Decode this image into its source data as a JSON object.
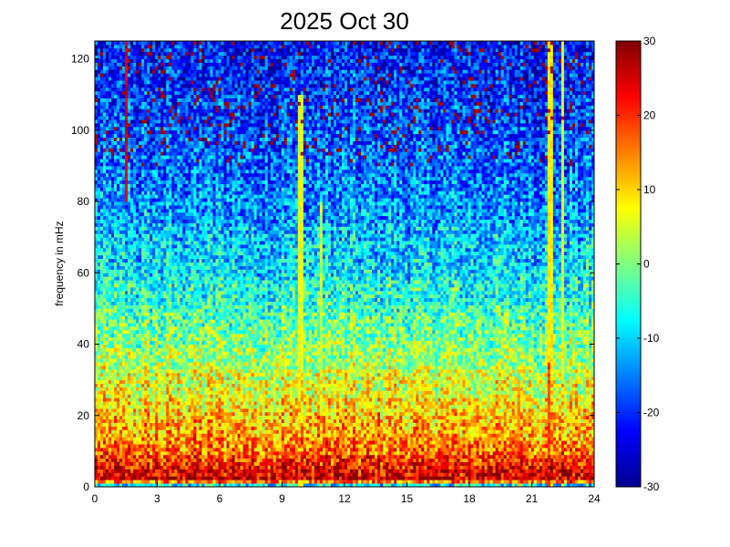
{
  "chart_data": {
    "type": "heatmap",
    "title": "2025 Oct 30",
    "xlabel": "",
    "ylabel": "frequency in mHz",
    "xlim": [
      0,
      24
    ],
    "ylim": [
      0,
      125
    ],
    "x_ticks": [
      "0",
      "3",
      "6",
      "9",
      "12",
      "15",
      "18",
      "21",
      "24"
    ],
    "y_ticks": [
      "0",
      "20",
      "40",
      "60",
      "80",
      "100",
      "120"
    ],
    "colorbar": {
      "range": [
        -30,
        30
      ],
      "ticks": [
        "30",
        "20",
        "10",
        "0",
        "-10",
        "-20",
        "-30"
      ],
      "colormap": "jet"
    },
    "grid": false,
    "frequency_profile": [
      {
        "freq": 0,
        "level": -20
      },
      {
        "freq": 2,
        "level": 26
      },
      {
        "freq": 5,
        "level": 24
      },
      {
        "freq": 10,
        "level": 16
      },
      {
        "freq": 20,
        "level": 10
      },
      {
        "freq": 30,
        "level": 5
      },
      {
        "freq": 40,
        "level": 0
      },
      {
        "freq": 60,
        "level": -8
      },
      {
        "freq": 80,
        "level": -14
      },
      {
        "freq": 100,
        "level": -18
      },
      {
        "freq": 125,
        "level": -22
      }
    ],
    "vertical_streaks": [
      {
        "time": 1.5,
        "level": 25,
        "fmin": 80,
        "fmax": 125
      },
      {
        "time": 9.9,
        "level": 6,
        "fmin": 0,
        "fmax": 110
      },
      {
        "time": 10.9,
        "level": 4,
        "fmin": 0,
        "fmax": 80
      },
      {
        "time": 20.4,
        "level": 14,
        "fmin": 0,
        "fmax": 30
      },
      {
        "time": 21.8,
        "level": 18,
        "fmin": 0,
        "fmax": 35
      },
      {
        "time": 21.9,
        "level": 8,
        "fmin": 0,
        "fmax": 125
      },
      {
        "time": 22.5,
        "level": 6,
        "fmin": 0,
        "fmax": 125
      }
    ]
  }
}
